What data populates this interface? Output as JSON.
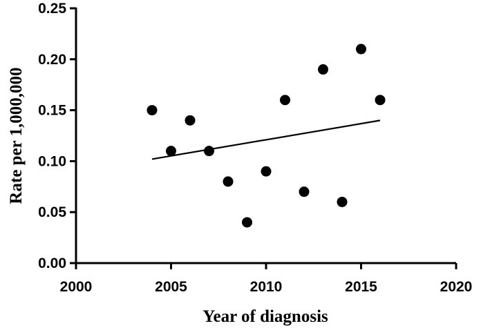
{
  "chart_data": {
    "type": "scatter",
    "title": "",
    "xlabel": "Year of diagnosis",
    "ylabel": "Rate per 1,000,000",
    "xlim": [
      2000,
      2020
    ],
    "ylim": [
      0.0,
      0.25
    ],
    "x_ticks": [
      "2000",
      "2005",
      "2010",
      "2015",
      "2020"
    ],
    "y_ticks": [
      "0.00",
      "0.05",
      "0.10",
      "0.15",
      "0.20",
      "0.25"
    ],
    "grid": false,
    "series": [
      {
        "points": [
          {
            "x": 2004,
            "y": 0.15
          },
          {
            "x": 2005,
            "y": 0.11
          },
          {
            "x": 2006,
            "y": 0.14
          },
          {
            "x": 2007,
            "y": 0.11
          },
          {
            "x": 2008,
            "y": 0.08
          },
          {
            "x": 2009,
            "y": 0.04
          },
          {
            "x": 2010,
            "y": 0.09
          },
          {
            "x": 2011,
            "y": 0.16
          },
          {
            "x": 2012,
            "y": 0.07
          },
          {
            "x": 2013,
            "y": 0.19
          },
          {
            "x": 2014,
            "y": 0.06
          },
          {
            "x": 2015,
            "y": 0.21
          },
          {
            "x": 2016,
            "y": 0.16
          }
        ]
      }
    ],
    "trend_line": {
      "x": [
        2004,
        2016
      ],
      "y": [
        0.102,
        0.14
      ]
    },
    "colors": {
      "marker": "#000000",
      "axis": "#000000",
      "background": "#ffffff"
    }
  }
}
